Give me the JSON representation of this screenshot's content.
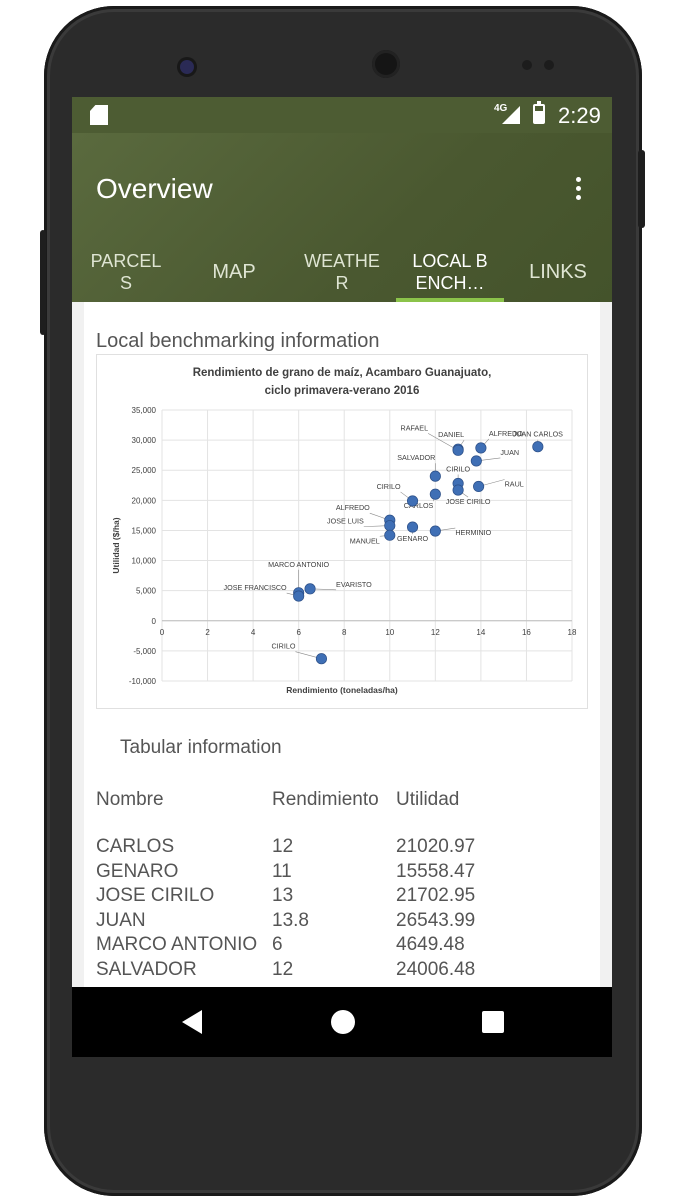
{
  "status_bar": {
    "network": "4G",
    "time": "2:29"
  },
  "app_bar": {
    "title": "Overview"
  },
  "tabs": [
    {
      "label": "PARCEL\nS"
    },
    {
      "label": "MAP"
    },
    {
      "label": "WEATHE\nR"
    },
    {
      "label": "LOCAL B\nENCH…"
    },
    {
      "label": "LINKS"
    }
  ],
  "active_tab": "LOCAL BENCH…",
  "section_title": "Local benchmarking information",
  "tabular_title": "Tabular information",
  "table": {
    "headers": [
      "Nombre",
      "Rendimiento",
      "Utilidad"
    ],
    "rows": [
      [
        "CARLOS",
        "12",
        "21020.97"
      ],
      [
        "GENARO",
        "11",
        "15558.47"
      ],
      [
        "JOSE CIRILO",
        "13",
        "21702.95"
      ],
      [
        "JUAN",
        "13.8",
        "26543.99"
      ],
      [
        "MARCO ANTONIO",
        "6",
        "4649.48"
      ],
      [
        "SALVADOR",
        "12",
        "24006.48"
      ]
    ]
  },
  "colors": {
    "appbar": "#4d5c33",
    "indicator": "#8bc34a",
    "point": "#3f6fb5"
  },
  "chart_data": {
    "type": "scatter",
    "title": "Rendimiento de grano de maíz, Acambaro Guanajuato, ciclo primavera-verano 2016",
    "xlabel": "Rendimiento (toneladas/ha)",
    "ylabel": "Utilidad ($/ha)",
    "xlim": [
      0,
      18
    ],
    "ylim": [
      -10000,
      35000
    ],
    "xticks": [
      "0",
      "2",
      "4",
      "6",
      "8",
      "10",
      "12",
      "14",
      "16",
      "18"
    ],
    "yticks": [
      "-10,000",
      "-5,000",
      "0",
      "5,000",
      "10,000",
      "15,000",
      "20,000",
      "25,000",
      "30,000",
      "35,000"
    ],
    "grid": true,
    "points": [
      {
        "label": "JUAN CARLOS",
        "x": 16.5,
        "y": 28900
      },
      {
        "label": "ALFREDO",
        "x": 14,
        "y": 28700
      },
      {
        "label": "DANIEL",
        "x": 13,
        "y": 28500
      },
      {
        "label": "RAFAEL",
        "x": 13,
        "y": 28300
      },
      {
        "label": "JUAN",
        "x": 13.8,
        "y": 26544
      },
      {
        "label": "SALVADOR",
        "x": 12,
        "y": 24006
      },
      {
        "label": "CIRILO",
        "x": 13,
        "y": 22800
      },
      {
        "label": "RAUL",
        "x": 13.9,
        "y": 22300
      },
      {
        "label": "JOSE CIRILO",
        "x": 13,
        "y": 21703
      },
      {
        "label": "CARLOS",
        "x": 12,
        "y": 21021
      },
      {
        "label": "CIRILO",
        "x": 11,
        "y": 19900
      },
      {
        "label": "ALFREDO",
        "x": 10,
        "y": 16700
      },
      {
        "label": "JOSE LUIS",
        "x": 10,
        "y": 15800
      },
      {
        "label": "GENARO",
        "x": 11,
        "y": 15558
      },
      {
        "label": "HERMINIO",
        "x": 12,
        "y": 14900
      },
      {
        "label": "MANUEL",
        "x": 10,
        "y": 14200
      },
      {
        "label": "EVARISTO",
        "x": 6.5,
        "y": 5300
      },
      {
        "label": "MARCO ANTONIO",
        "x": 6,
        "y": 4649
      },
      {
        "label": "JOSE FRANCISCO",
        "x": 6,
        "y": 4100
      },
      {
        "label": "CIRILO",
        "x": 7,
        "y": -6300
      }
    ]
  }
}
